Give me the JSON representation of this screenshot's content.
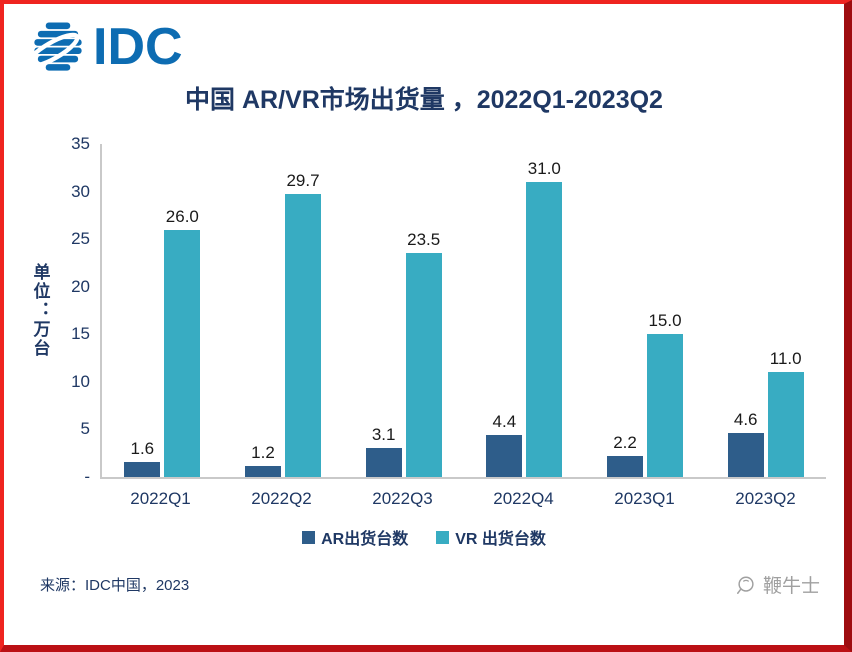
{
  "logo": {
    "text": "IDC"
  },
  "colors": {
    "ar": "#2e5d8a",
    "vr": "#38acc2",
    "navy": "#1f3864",
    "logo_blue": "#0d6cb2",
    "axis_gray": "#c9c9c9",
    "data_label": "#1a1a1a",
    "watermark_gray": "#a0a0a0",
    "frame_red": "#ef2420"
  },
  "chart_data": {
    "type": "bar",
    "title": "中国 AR/VR市场出货量 ，2022Q1-2023Q2",
    "xlabel": "",
    "ylabel": "单位：万台",
    "ylim": [
      0,
      35
    ],
    "grid": false,
    "legend_position": "bottom",
    "y_ticks": [
      {
        "value": 35,
        "label": "35"
      },
      {
        "value": 30,
        "label": "30"
      },
      {
        "value": 25,
        "label": "25"
      },
      {
        "value": 20,
        "label": "20"
      },
      {
        "value": 15,
        "label": "15"
      },
      {
        "value": 10,
        "label": "10"
      },
      {
        "value": 5,
        "label": "5"
      },
      {
        "value": 0,
        "label": "-"
      }
    ],
    "categories": [
      "2022Q1",
      "2022Q2",
      "2022Q3",
      "2022Q4",
      "2023Q1",
      "2023Q2"
    ],
    "series": [
      {
        "name": "AR出货台数",
        "color_key": "ar",
        "values": [
          1.6,
          1.2,
          3.1,
          4.4,
          2.2,
          4.6
        ],
        "labels": [
          "1.6",
          "1.2",
          "3.1",
          "4.4",
          "2.2",
          "4.6"
        ]
      },
      {
        "name": "VR 出货台数",
        "color_key": "vr",
        "values": [
          26.0,
          29.7,
          23.5,
          31.0,
          15.0,
          11.0
        ],
        "labels": [
          "26.0",
          "29.7",
          "23.5",
          "31.0",
          "15.0",
          "11.0"
        ]
      }
    ]
  },
  "footer": {
    "source": "来源：IDC中国，2023",
    "watermark": "鞭牛士"
  }
}
